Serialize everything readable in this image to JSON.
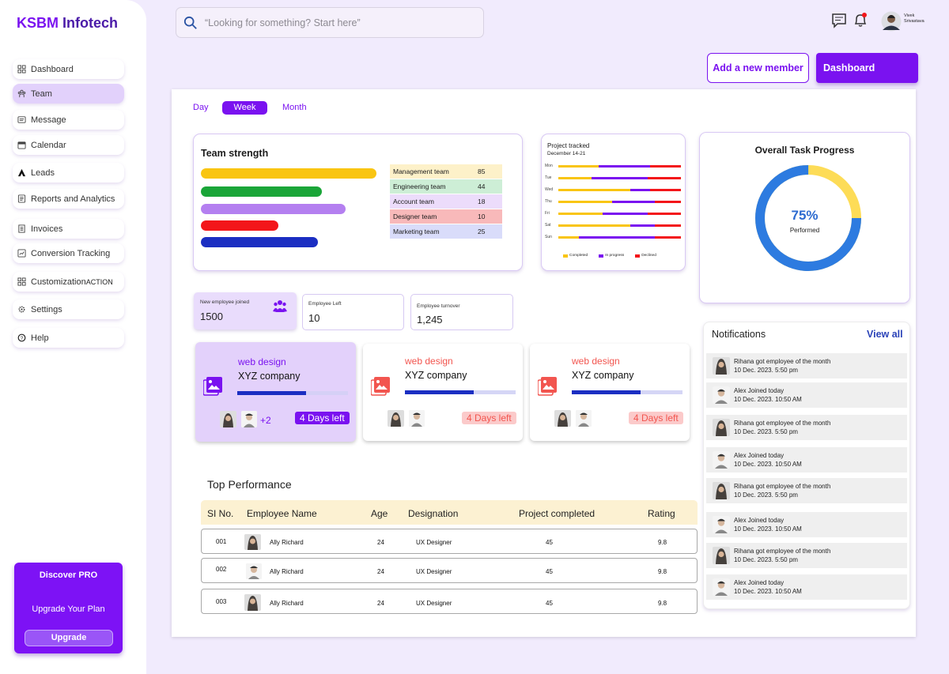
{
  "brand": {
    "name_part1": "KSBM",
    "name_part2": "Infotech"
  },
  "sidebar": {
    "items": [
      {
        "label": "Dashboard",
        "icon": "dashboard-grid-icon"
      },
      {
        "label": "Team",
        "icon": "team-icon"
      },
      {
        "label": "Message",
        "icon": "message-icon"
      },
      {
        "label": "Calendar",
        "icon": "calendar-icon"
      },
      {
        "label": "Leads",
        "icon": "leads-icon"
      },
      {
        "label": "Reports and Analytics",
        "icon": "reports-icon"
      },
      {
        "label": "Invoices",
        "icon": "invoice-icon"
      },
      {
        "label": "Conversion Tracking",
        "icon": "conversion-icon"
      },
      {
        "label": "Customization",
        "icon": "customization-icon",
        "tag": "ACTION"
      },
      {
        "label": "Settings",
        "icon": "gear-icon"
      },
      {
        "label": "Help",
        "icon": "help-icon"
      }
    ],
    "active_item": "Team",
    "pro": {
      "title": "Discover PRO",
      "subtitle": "Upgrade Your Plan",
      "button": "Upgrade"
    }
  },
  "header": {
    "search_placeholder": "“Looking for something? Start here”",
    "user_name_line1": "Vivek",
    "user_name_line2": "Srivastava"
  },
  "actions": {
    "add_member": "Add a new member",
    "dashboard": "Dashboard"
  },
  "period_tabs": [
    "Day",
    "Week",
    "Month"
  ],
  "active_period": "Week",
  "team_strength": {
    "title": "Team strength",
    "teams": [
      {
        "name": "Management team",
        "value": "85",
        "color": "#f9c512",
        "bg": "#fdf1c9"
      },
      {
        "name": "Engineering team",
        "value": "44",
        "color": "#1aa538",
        "bg": "#cdeed6"
      },
      {
        "name": "Account team",
        "value": "18",
        "color": "#b47ff0",
        "bg": "#ecdcfb"
      },
      {
        "name": "Designer team",
        "value": "10",
        "color": "#f3161a",
        "bg": "#f8b9ba"
      },
      {
        "name": "Marketing team",
        "value": "25",
        "color": "#1b2ec2",
        "bg": "#d9dcfa"
      }
    ]
  },
  "project_tracked": {
    "title": "Project tracked",
    "date": "December 14-21",
    "days": [
      "Mon",
      "Tue",
      "Wed",
      "Thu",
      "Fri",
      "Sat",
      "Sun"
    ],
    "legend": [
      "Completed",
      "In progress",
      "Declined"
    ],
    "colors": {
      "completed": "#f9c512",
      "in_progress": "#7a12f0",
      "declined": "#f3161a"
    }
  },
  "task_progress": {
    "title": "Overall Task Progress",
    "percent": 75,
    "percent_label": "75%",
    "sub": "Performed"
  },
  "stats": [
    {
      "label": "New employee joined",
      "value": "1500"
    },
    {
      "label": "Employee Left",
      "value": "10"
    },
    {
      "label": "Employee turnover",
      "value": "1,245"
    }
  ],
  "projects": [
    {
      "category": "web design",
      "company": "XYZ company",
      "days": "4  Days left",
      "extra": "+2",
      "progress": 0.62
    },
    {
      "category": "web design",
      "company": "XYZ company",
      "days": "4  Days left",
      "progress": 0.62
    },
    {
      "category": "web design",
      "company": "XYZ company",
      "days": "4  Days left",
      "progress": 0.62
    }
  ],
  "top_performance": {
    "title": "Top Performance",
    "columns": [
      "SI No.",
      "Employee Name",
      "Age",
      "Designation",
      "Project completed",
      "Rating"
    ],
    "rows": [
      {
        "si": "001",
        "name": "Ally Richard",
        "age": "24",
        "designation": "UX Designer",
        "projects": "45",
        "rating": "9.8"
      },
      {
        "si": "002",
        "name": "Ally Richard",
        "age": "24",
        "designation": "UX Designer",
        "projects": "45",
        "rating": "9.8"
      },
      {
        "si": "003",
        "name": "Ally Richard",
        "age": "24",
        "designation": "UX Designer",
        "projects": "45",
        "rating": "9.8"
      }
    ]
  },
  "notifications": {
    "title": "Notifications",
    "view_all": "View all",
    "items": [
      {
        "text": "Rihana got employee of the month",
        "time": "10 Dec. 2023. 5:50 pm"
      },
      {
        "text": "Alex Joined today",
        "time": "10 Dec. 2023. 10:50 AM"
      },
      {
        "text": "Rihana got employee of the month",
        "time": "10 Dec. 2023. 5:50 pm"
      },
      {
        "text": "Alex Joined today",
        "time": "10 Dec. 2023. 10:50 AM"
      },
      {
        "text": "Rihana got employee of the month",
        "time": "10 Dec. 2023. 5:50 pm"
      },
      {
        "text": "Alex Joined today",
        "time": "10 Dec. 2023. 10:50 AM"
      },
      {
        "text": "Rihana got employee of the month",
        "time": "10 Dec. 2023. 5:50 pm"
      },
      {
        "text": "Alex Joined today",
        "time": "10 Dec. 2023. 10:50 AM"
      }
    ]
  },
  "colors": {
    "accent": "#7a12f0",
    "blue": "#2d7be0",
    "yellow": "#fddc57",
    "red": "#f2554f"
  }
}
